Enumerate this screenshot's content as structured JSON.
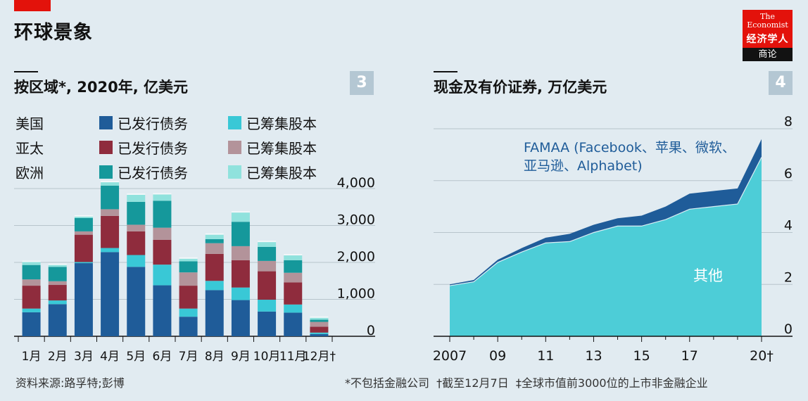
{
  "header": {
    "title": "环球景象",
    "logo": {
      "line1": "The",
      "line2": "Economist",
      "cn": "经济学人",
      "sub": "商论"
    }
  },
  "panels": [
    {
      "number": "3",
      "title": "按区域*, 2020年, 亿美元"
    },
    {
      "number": "4",
      "title": "现金及有价证券, 万亿美元"
    }
  ],
  "legend": {
    "regions": [
      "美国",
      "亚太",
      "欧洲"
    ],
    "debt_label": "已发行债务",
    "equity_label": "已筹集股本",
    "colors": {
      "us_debt": "#1f5c99",
      "us_equity": "#39c8d6",
      "apac_debt": "#8f2c3d",
      "apac_equity": "#b3939a",
      "eu_debt": "#15989b",
      "eu_equity": "#90e2dd"
    }
  },
  "chart_data": [
    {
      "type": "bar",
      "stacked": true,
      "categories": [
        "1月",
        "2月",
        "3月",
        "4月",
        "5月",
        "6月",
        "7月",
        "8月",
        "9月",
        "10月",
        "11月",
        "12月†"
      ],
      "series": [
        {
          "name": "美国 已发行债务",
          "values": [
            650,
            870,
            1980,
            2280,
            1880,
            1380,
            530,
            1250,
            980,
            670,
            640,
            60
          ]
        },
        {
          "name": "美国 已筹集股本",
          "values": [
            100,
            100,
            30,
            110,
            320,
            560,
            220,
            250,
            340,
            320,
            220,
            40
          ]
        },
        {
          "name": "亚太 已发行债务",
          "values": [
            620,
            420,
            740,
            870,
            640,
            670,
            620,
            730,
            740,
            770,
            600,
            160
          ]
        },
        {
          "name": "亚太 已筹集股本",
          "values": [
            170,
            100,
            90,
            180,
            180,
            330,
            360,
            290,
            380,
            280,
            260,
            130
          ]
        },
        {
          "name": "欧洲 已发行债务",
          "values": [
            390,
            390,
            360,
            640,
            620,
            730,
            300,
            110,
            660,
            380,
            340,
            60
          ]
        },
        {
          "name": "欧洲 已筹集股本",
          "values": [
            80,
            50,
            40,
            90,
            190,
            170,
            70,
            120,
            250,
            130,
            130,
            50
          ]
        }
      ],
      "yticks": [
        "0",
        "1,000",
        "2,000",
        "3,000",
        "4,000"
      ],
      "ylim": [
        0,
        4000
      ]
    },
    {
      "type": "area",
      "stacked": true,
      "x": [
        2007,
        2008,
        2009,
        2010,
        2011,
        2012,
        2013,
        2014,
        2015,
        2016,
        2017,
        2018,
        2019,
        2020
      ],
      "series": [
        {
          "name": "其他",
          "values": [
            1.95,
            2.1,
            2.85,
            3.25,
            3.6,
            3.65,
            4.0,
            4.25,
            4.25,
            4.5,
            4.9,
            5.0,
            5.1,
            6.9
          ]
        },
        {
          "name": "FAMAA",
          "values": [
            0.05,
            0.07,
            0.1,
            0.15,
            0.2,
            0.3,
            0.3,
            0.3,
            0.4,
            0.5,
            0.6,
            0.6,
            0.6,
            0.7
          ]
        }
      ],
      "xticks": [
        "2007",
        "09",
        "11",
        "13",
        "15",
        "17",
        "20†"
      ],
      "yticks": [
        "0",
        "2",
        "4",
        "6",
        "8"
      ],
      "ylim": [
        0,
        8
      ],
      "annotations": {
        "famaa_line1": "FAMAA (Facebook、苹果、微软、",
        "famaa_line2": "亚马逊、Alphabet)",
        "other": "其他"
      },
      "colors": {
        "other": "#4dcdd7",
        "famaa": "#1f5c99"
      }
    }
  ],
  "footer": {
    "source": "资料来源:路孚特;彭博",
    "notes": "*不包括金融公司  †截至12月7日  ‡全球市值前3000位的上市非金融企业"
  }
}
